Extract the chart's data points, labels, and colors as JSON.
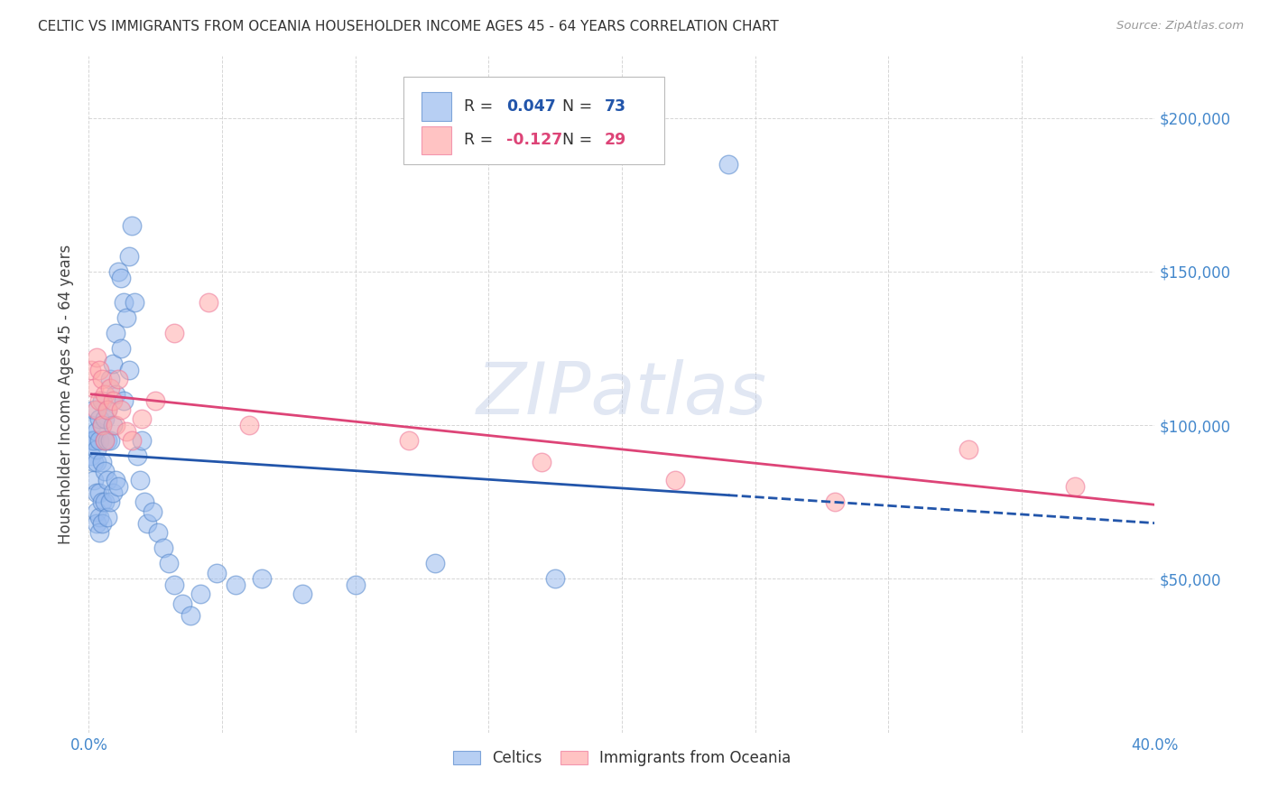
{
  "title": "CELTIC VS IMMIGRANTS FROM OCEANIA HOUSEHOLDER INCOME AGES 45 - 64 YEARS CORRELATION CHART",
  "source": "Source: ZipAtlas.com",
  "ylabel": "Householder Income Ages 45 - 64 years",
  "xlim": [
    0.0,
    0.4
  ],
  "ylim": [
    0,
    220000
  ],
  "yticks": [
    0,
    50000,
    100000,
    150000,
    200000
  ],
  "ytick_labels": [
    "",
    "$50,000",
    "$100,000",
    "$150,000",
    "$200,000"
  ],
  "xticks": [
    0.0,
    0.05,
    0.1,
    0.15,
    0.2,
    0.25,
    0.3,
    0.35,
    0.4
  ],
  "blue_color": "#99BBEE",
  "pink_color": "#FFAAAA",
  "blue_edge_color": "#5588CC",
  "pink_edge_color": "#EE7799",
  "blue_line_color": "#2255AA",
  "pink_line_color": "#DD4477",
  "axis_label_color": "#4488CC",
  "grid_color": "#CCCCCC",
  "watermark": "ZIPatlas",
  "watermark_color": "#AABBDD",
  "legend_r_blue": "0.047",
  "legend_n_blue": "73",
  "legend_r_pink": "-0.127",
  "legend_n_pink": "29",
  "blue_scatter_x": [
    0.001,
    0.001,
    0.001,
    0.002,
    0.002,
    0.002,
    0.002,
    0.002,
    0.003,
    0.003,
    0.003,
    0.003,
    0.003,
    0.003,
    0.004,
    0.004,
    0.004,
    0.004,
    0.004,
    0.005,
    0.005,
    0.005,
    0.005,
    0.005,
    0.006,
    0.006,
    0.006,
    0.006,
    0.007,
    0.007,
    0.007,
    0.007,
    0.008,
    0.008,
    0.008,
    0.009,
    0.009,
    0.009,
    0.01,
    0.01,
    0.01,
    0.011,
    0.011,
    0.012,
    0.012,
    0.013,
    0.013,
    0.014,
    0.015,
    0.015,
    0.016,
    0.017,
    0.018,
    0.019,
    0.02,
    0.021,
    0.022,
    0.024,
    0.026,
    0.028,
    0.03,
    0.032,
    0.035,
    0.038,
    0.042,
    0.048,
    0.055,
    0.065,
    0.08,
    0.1,
    0.13,
    0.175,
    0.24
  ],
  "blue_scatter_y": [
    100000,
    95000,
    90000,
    95000,
    88000,
    82000,
    95000,
    105000,
    92000,
    98000,
    88000,
    78000,
    72000,
    68000,
    95000,
    102000,
    78000,
    70000,
    65000,
    100000,
    108000,
    88000,
    75000,
    68000,
    102000,
    95000,
    85000,
    75000,
    105000,
    95000,
    82000,
    70000,
    115000,
    95000,
    75000,
    120000,
    100000,
    78000,
    130000,
    110000,
    82000,
    150000,
    80000,
    148000,
    125000,
    140000,
    108000,
    135000,
    155000,
    118000,
    165000,
    140000,
    90000,
    82000,
    95000,
    75000,
    68000,
    72000,
    65000,
    60000,
    55000,
    48000,
    42000,
    38000,
    45000,
    52000,
    48000,
    50000,
    45000,
    48000,
    55000,
    50000,
    185000
  ],
  "pink_scatter_x": [
    0.001,
    0.002,
    0.003,
    0.003,
    0.004,
    0.004,
    0.005,
    0.005,
    0.006,
    0.006,
    0.007,
    0.008,
    0.009,
    0.01,
    0.011,
    0.012,
    0.014,
    0.016,
    0.02,
    0.025,
    0.032,
    0.045,
    0.06,
    0.12,
    0.17,
    0.22,
    0.28,
    0.33,
    0.37
  ],
  "pink_scatter_y": [
    118000,
    112000,
    122000,
    105000,
    118000,
    108000,
    115000,
    100000,
    110000,
    95000,
    105000,
    112000,
    108000,
    100000,
    115000,
    105000,
    98000,
    95000,
    102000,
    108000,
    130000,
    140000,
    100000,
    95000,
    88000,
    82000,
    75000,
    92000,
    80000
  ]
}
